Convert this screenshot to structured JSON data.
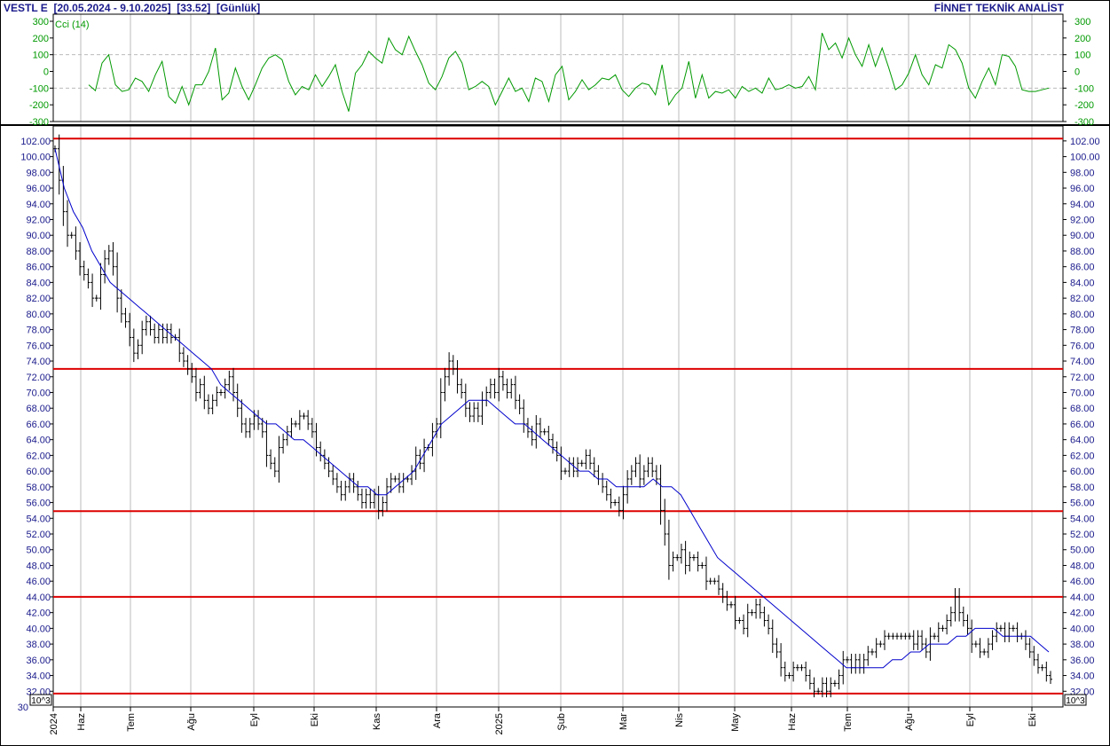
{
  "header": {
    "symbol": "VESTL E",
    "range": "[20.05.2024 - 9.10.2025]",
    "last": "[33.52]",
    "period": "[Günlük]",
    "brand": "FİNNET TEKNİK ANALİST"
  },
  "colors": {
    "price_bars": "#000000",
    "moving_average": "#0000cc",
    "support_resistance": "#dd0000",
    "cci_line": "#009900",
    "axis_text": "#1a1a8c",
    "grid": "#bbbbbb"
  },
  "chart_data": [
    {
      "type": "line",
      "title": "Cci (14)",
      "y_ticks": [
        300,
        200,
        100,
        0,
        -100,
        -200,
        -300
      ],
      "y_tick_labels": [
        "300",
        "200",
        "100",
        "0",
        "-100",
        "-200",
        "-300"
      ],
      "ylim": [
        -300,
        300
      ],
      "reference_lines": [
        100,
        -100
      ],
      "series": [
        {
          "name": "Cci (14)",
          "values": [
            -80,
            -115,
            50,
            100,
            -80,
            -120,
            -110,
            -40,
            -60,
            -120,
            -20,
            60,
            -150,
            -190,
            -90,
            -200,
            -80,
            -80,
            0,
            140,
            -170,
            -130,
            20,
            -90,
            -170,
            -80,
            20,
            80,
            100,
            70,
            -60,
            -140,
            -90,
            -110,
            -20,
            -90,
            -30,
            40,
            -120,
            -240,
            -10,
            40,
            120,
            80,
            50,
            200,
            130,
            100,
            210,
            120,
            40,
            -70,
            -110,
            -30,
            80,
            120,
            50,
            -110,
            -90,
            -60,
            -90,
            -200,
            -120,
            -40,
            -120,
            -100,
            -180,
            -40,
            -60,
            -180,
            -20,
            30,
            -170,
            -120,
            -50,
            -110,
            -80,
            -40,
            -50,
            -20,
            -110,
            -150,
            -100,
            -70,
            -80,
            -140,
            40,
            -200,
            -140,
            -100,
            60,
            -160,
            -20,
            -160,
            -120,
            -130,
            -110,
            -160,
            -90,
            -120,
            -100,
            -130,
            -40,
            -110,
            -100,
            -80,
            -100,
            -90,
            -30,
            -110,
            230,
            130,
            170,
            80,
            200,
            100,
            30,
            160,
            30,
            140,
            20,
            -110,
            -80,
            -10,
            100,
            -20,
            -80,
            40,
            20,
            160,
            130,
            50,
            -100,
            -160,
            -60,
            20,
            -80,
            100,
            90,
            30,
            -110,
            -120,
            -120,
            -110,
            -100
          ]
        }
      ]
    },
    {
      "type": "bar",
      "subtype": "ohlc",
      "x_tick_labels": [
        "2024",
        "Haz",
        "Tem",
        "Ağu",
        "Eyl",
        "Eki",
        "Kas",
        "Ara",
        "2025",
        "Şub",
        "Mar",
        "Nis",
        "May",
        "Haz",
        "Tem",
        "Ağu",
        "Eyl",
        "Eki"
      ],
      "ylim": [
        30,
        103
      ],
      "y_ticks": [
        32,
        34,
        36,
        38,
        40,
        42,
        44,
        46,
        48,
        50,
        52,
        54,
        56,
        58,
        60,
        62,
        64,
        66,
        68,
        70,
        72,
        74,
        76,
        78,
        80,
        82,
        84,
        86,
        88,
        90,
        92,
        94,
        96,
        98,
        100,
        102
      ],
      "y_tick_labels": [
        "32.00",
        "34.00",
        "36.00",
        "38.00",
        "40.00",
        "42.00",
        "44.00",
        "46.00",
        "48.00",
        "50.00",
        "52.00",
        "54.00",
        "56.00",
        "58.00",
        "60.00",
        "62.00",
        "64.00",
        "66.00",
        "68.00",
        "70.00",
        "72.00",
        "74.00",
        "76.00",
        "78.00",
        "80.00",
        "82.00",
        "84.00",
        "86.00",
        "88.00",
        "90.00",
        "92.00",
        "94.00",
        "96.00",
        "98.00",
        "100.00",
        "102.00"
      ],
      "y_axis_extra_labels": [
        "30"
      ],
      "scale_badge": "10^3",
      "horizontal_levels": [
        102.3,
        73.0,
        54.9,
        44.0,
        31.7
      ],
      "series": [
        {
          "name": "Price",
          "close": [
            101,
            97,
            93,
            90,
            90,
            88,
            86,
            85,
            84,
            82,
            82,
            85,
            87,
            88,
            86,
            82,
            80,
            79,
            77,
            75,
            76,
            78,
            79,
            78,
            77,
            78,
            77,
            78,
            77,
            77,
            75,
            74,
            73,
            72,
            70,
            71,
            69,
            68,
            69,
            70,
            70,
            71,
            72,
            70,
            68,
            66,
            65,
            66,
            67,
            66,
            65,
            62,
            61,
            60,
            63,
            64,
            65,
            66,
            66,
            67,
            67,
            66,
            65,
            63,
            62,
            61,
            60,
            59,
            58,
            57,
            58,
            59,
            58,
            57,
            56,
            57,
            56,
            57,
            55,
            56,
            58,
            59,
            59,
            58,
            59,
            59,
            60,
            62,
            61,
            63,
            63,
            65,
            66,
            70,
            72,
            74,
            73,
            71,
            70,
            68,
            67,
            68,
            67,
            69,
            70,
            71,
            70,
            72,
            71,
            70,
            71,
            69,
            68,
            66,
            65,
            64,
            66,
            65,
            65,
            64,
            63,
            62,
            60,
            60,
            61,
            60,
            61,
            61,
            62,
            61,
            60,
            59,
            58,
            57,
            56,
            56,
            55,
            57,
            59,
            60,
            61,
            59,
            60,
            61,
            60,
            59,
            55,
            52,
            48,
            49,
            49,
            50,
            48,
            49,
            49,
            48,
            48,
            46,
            46,
            46,
            45,
            44,
            43,
            43,
            41,
            41,
            40,
            42,
            42,
            43,
            42,
            41,
            40,
            38,
            37,
            35,
            34,
            34,
            35,
            35,
            35,
            34,
            33,
            32,
            32,
            33,
            32,
            33,
            33,
            34,
            36,
            36,
            35,
            36,
            35,
            36,
            37,
            37,
            38,
            38,
            39,
            39,
            39,
            39,
            39,
            39,
            39,
            38,
            39,
            38,
            37,
            39,
            39,
            40,
            40,
            41,
            42,
            44,
            42,
            41,
            40,
            38,
            38,
            37,
            37,
            38,
            39,
            40,
            40,
            39,
            40,
            40,
            39,
            39,
            38,
            37,
            36,
            35,
            35,
            34,
            33.52
          ],
          "moving_average": [
            101,
            96,
            93,
            91,
            88,
            86,
            84,
            83,
            82,
            81,
            80,
            79,
            78,
            77,
            76,
            75,
            74,
            73,
            71,
            70,
            69,
            68,
            67,
            66,
            66,
            65,
            64,
            64,
            63,
            62,
            61,
            60,
            59,
            58,
            58,
            57,
            57,
            58,
            59,
            60,
            62,
            64,
            66,
            67,
            68,
            69,
            69,
            69,
            68,
            67,
            66,
            66,
            65,
            64,
            63,
            62,
            61,
            60,
            60,
            59,
            59,
            58,
            58,
            58,
            58,
            59,
            58,
            58,
            57,
            55,
            53,
            51,
            49,
            48,
            47,
            46,
            45,
            44,
            43,
            42,
            41,
            40,
            39,
            38,
            37,
            36,
            35,
            35,
            35,
            35,
            35,
            36,
            36,
            37,
            37,
            38,
            38,
            38,
            39,
            39,
            40,
            40,
            40,
            39,
            39,
            39,
            39,
            38,
            37
          ]
        }
      ]
    }
  ]
}
